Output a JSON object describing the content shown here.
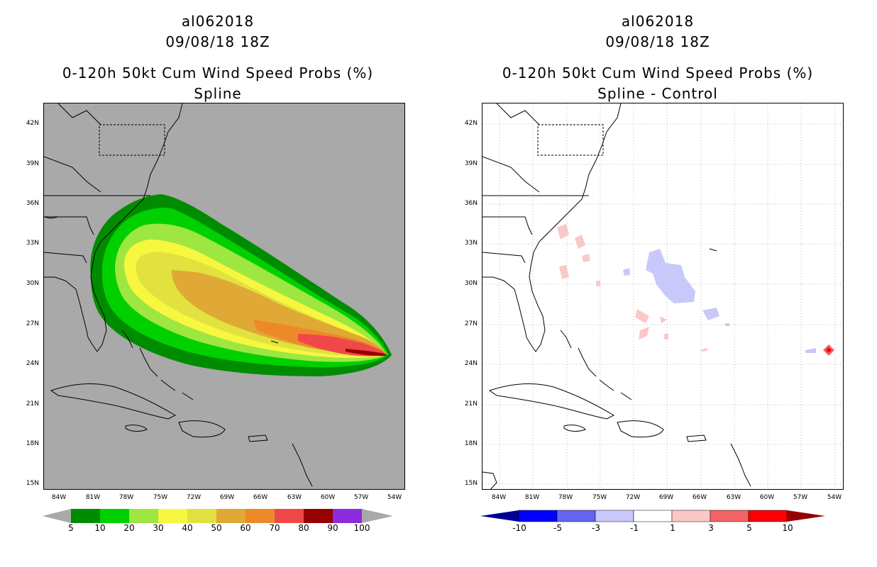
{
  "left_panel": {
    "title_line1": "al062018",
    "title_line2": "09/08/18 18Z",
    "title_line3": "0-120h 50kt Cum Wind Speed Probs (%)",
    "title_line4": "Spline",
    "colorbar": {
      "labels": [
        "5",
        "10",
        "20",
        "30",
        "40",
        "50",
        "60",
        "70",
        "80",
        "90",
        "100"
      ],
      "colors": [
        "#008c00",
        "#00d000",
        "#9ee640",
        "#f7f740",
        "#e1e140",
        "#e0a834",
        "#ec8a2a",
        "#f04848",
        "#960000",
        "#8c2cde"
      ]
    }
  },
  "right_panel": {
    "title_line1": "al062018",
    "title_line2": "09/08/18 18Z",
    "title_line3": "0-120h 50kt Cum Wind Speed Probs (%)",
    "title_line4": "Spline - Control",
    "colorbar": {
      "labels": [
        "-10",
        "-5",
        "-3",
        "-1",
        "1",
        "3",
        "5",
        "10"
      ],
      "colors": [
        "#000096",
        "#0000fa",
        "#6464f4",
        "#c8c8fa",
        "#ffffff",
        "#fac8c8",
        "#f46464",
        "#fa0000",
        "#960000"
      ]
    }
  },
  "lat_labels": [
    "42N",
    "39N",
    "36N",
    "33N",
    "30N",
    "27N",
    "24N",
    "21N",
    "18N",
    "15N"
  ],
  "lon_labels": [
    "84W",
    "81W",
    "78W",
    "75W",
    "72W",
    "69W",
    "66W",
    "63W",
    "60W",
    "57W",
    "54W"
  ],
  "map_colors": {
    "left_background": "#a9a9a9",
    "right_background": "#ffffff",
    "coastline": "#000000",
    "grid": "#b8b8b8"
  }
}
